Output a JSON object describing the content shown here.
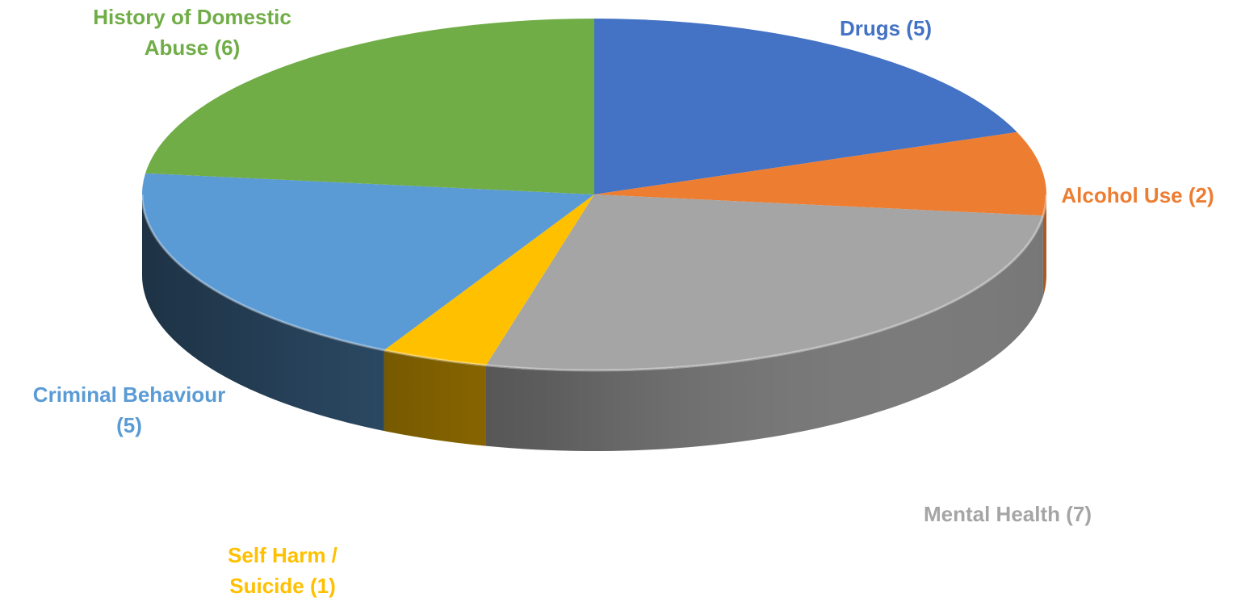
{
  "chart_data": {
    "type": "pie",
    "title": "",
    "legend": "none",
    "slices": [
      {
        "label": "Drugs",
        "value": 5,
        "color": "#4472C4",
        "data_label": "Drugs (5)"
      },
      {
        "label": "Alcohol Use",
        "value": 2,
        "color": "#ED7D31",
        "data_label": "Alcohol Use (2)"
      },
      {
        "label": "Mental Health",
        "value": 7,
        "color": "#A5A5A5",
        "data_label": "Mental Health (7)"
      },
      {
        "label": "Self Harm / Suicide",
        "value": 1,
        "color": "#FFC000",
        "data_label": "Self Harm / Suicide (1)"
      },
      {
        "label": "Criminal Behaviour",
        "value": 5,
        "color": "#5B9BD5",
        "data_label": "Criminal Behaviour (5)"
      },
      {
        "label": "History of Domestic Abuse",
        "value": 6,
        "color": "#70AD47",
        "data_label": "History of Domestic Abuse (6)"
      }
    ]
  }
}
